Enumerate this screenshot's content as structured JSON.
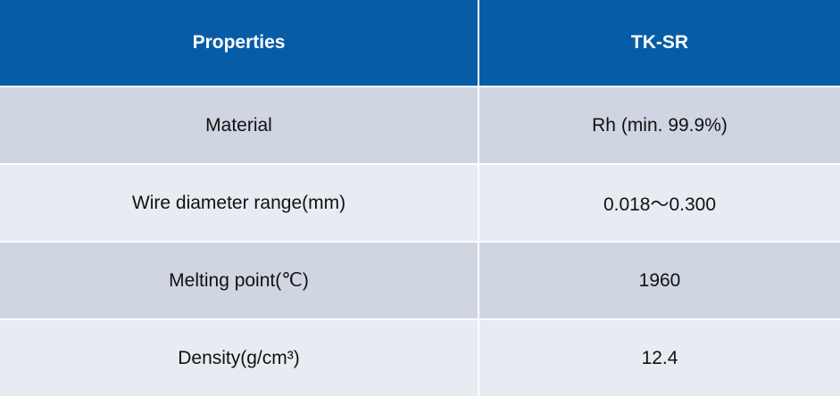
{
  "table": {
    "header": [
      "Properties",
      "TK-SR"
    ],
    "rows": [
      [
        "Material",
        "Rh (min. 99.9%)"
      ],
      [
        "Wire diameter range(mm)",
        "0.018～0.300"
      ],
      [
        "Melting point(℃)",
        "1960"
      ],
      [
        "Density(g/cm³)",
        "12.4"
      ]
    ]
  }
}
